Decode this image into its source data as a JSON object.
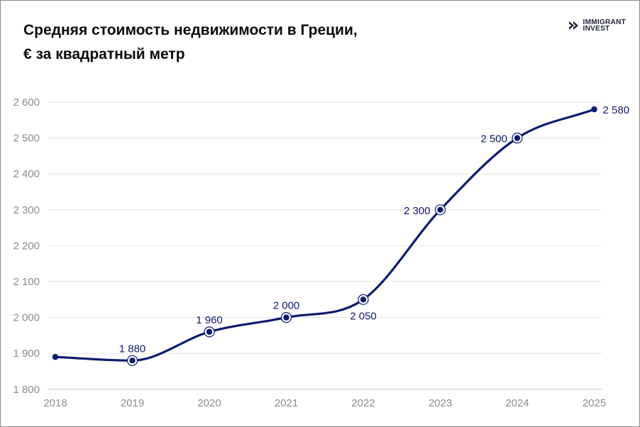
{
  "header": {
    "title_line1": "Средняя стоимость недвижимости в Греции,",
    "title_line2": "€ за квадратный метр"
  },
  "logo": {
    "line1": "IMMIGRANT",
    "line2": "INVEST",
    "icon": "chevron-logo-icon"
  },
  "colors": {
    "line": "#0d1b6e",
    "grid": "#e3e3e3",
    "tick_text": "#8c8c8c",
    "title": "#0b0b0b"
  },
  "chart_data": {
    "type": "line",
    "title": "Средняя стоимость недвижимости в Греции, € за квадратный метр",
    "xlabel": "",
    "ylabel": "",
    "categories": [
      "2018",
      "2019",
      "2020",
      "2021",
      "2022",
      "2023",
      "2024",
      "2025"
    ],
    "series": [
      {
        "values": [
          1890,
          1880,
          1960,
          2000,
          2050,
          2300,
          2500,
          2580
        ]
      }
    ],
    "data_labels": [
      "",
      "1 880",
      "1 960",
      "2 000",
      "2 050",
      "2 300",
      "2 500",
      "2 580"
    ],
    "label_placement": [
      "none",
      "above",
      "above",
      "above",
      "below",
      "left",
      "left",
      "right"
    ],
    "yticks": [
      1800,
      1900,
      2000,
      2100,
      2200,
      2300,
      2400,
      2500,
      2600
    ],
    "ytick_labels": [
      "1 800",
      "1 900",
      "2 000",
      "2 100",
      "2 200",
      "2 300",
      "2 400",
      "2 500",
      "2 600"
    ],
    "ylim": [
      1800,
      2650
    ],
    "grid": "horizontal",
    "legend": "none",
    "curve": "smooth"
  }
}
